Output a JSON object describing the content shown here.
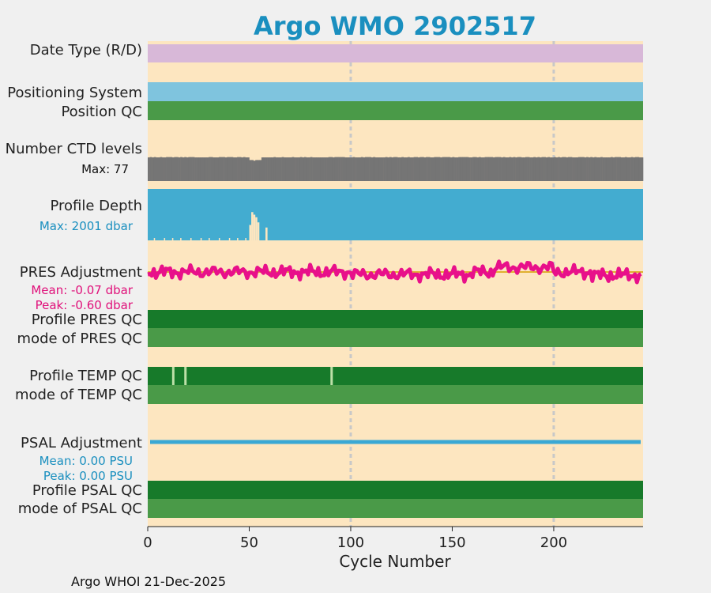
{
  "title": "Argo WMO 2902517",
  "footer": "Argo WHOI 21-Dec-2025",
  "colors": {
    "background": "#f0f0f0",
    "plot_bg": "#fde6c0",
    "title": "#1a8fbf",
    "date_type": "#d8b8d8",
    "positioning": "#7fc4de",
    "qc_good": "#4a9a48",
    "qc_dark": "#177a2a",
    "ctd_levels": "#757575",
    "profile_depth": "#43acd0",
    "pres_adjust": "#e8108a",
    "pres_mean_line": "#e0b030",
    "psal_adjust": "#3aa8d4",
    "grid": "#c8c8c8",
    "blue_text": "#1a8fbf",
    "pink_text": "#e0107a"
  },
  "chart_data": {
    "type": "bar",
    "title": "Argo WMO 2902517",
    "xlabel": "Cycle Number",
    "xlim": [
      0,
      244
    ],
    "xticks": [
      "0",
      "50",
      "100",
      "150",
      "200"
    ],
    "xtick_values": [
      0,
      50,
      100,
      150,
      200
    ],
    "grid_x": [
      100,
      200
    ],
    "rows": {
      "date_type": {
        "label": "Date Type (R/D)"
      },
      "positioning": {
        "label": "Positioning System"
      },
      "position_qc": {
        "label": "Position QC"
      },
      "ctd_levels": {
        "label": "Number CTD levels",
        "max_text": "Max: 77",
        "max": 77,
        "typical": 72,
        "dip_cycles": [
          50,
          51,
          52,
          53,
          54,
          55
        ],
        "dip_value": 64
      },
      "profile_depth": {
        "label": "Profile Depth",
        "max_text": "Max: 2001 dbar",
        "max": 2001,
        "shallow_cycles": [
          {
            "cycle": 51,
            "frac": 0.55
          },
          {
            "cycle": 52,
            "frac": 0.5
          },
          {
            "cycle": 53,
            "frac": 0.45
          },
          {
            "cycle": 50,
            "frac": 0.3
          },
          {
            "cycle": 54,
            "frac": 0.35
          },
          {
            "cycle": 58,
            "frac": 0.25
          }
        ]
      },
      "pres_adjustment": {
        "label": "PRES Adjustment",
        "mean_text": "Mean: -0.07 dbar",
        "peak_text": "Peak: -0.60 dbar",
        "mean": -0.07,
        "peak": -0.6
      },
      "profile_pres_qc": {
        "label": "Profile PRES QC"
      },
      "mode_pres_qc": {
        "label": "mode of PRES QC"
      },
      "profile_temp_qc": {
        "label": "Profile TEMP QC",
        "flag_cycles": [
          12,
          18,
          90
        ]
      },
      "mode_temp_qc": {
        "label": "mode of TEMP QC"
      },
      "psal_adjustment": {
        "label": "PSAL Adjustment",
        "mean_text": "Mean: 0.00 PSU",
        "peak_text": "Peak: 0.00 PSU",
        "mean": 0.0,
        "peak": 0.0
      },
      "profile_psal_qc": {
        "label": "Profile PSAL QC"
      },
      "mode_psal_qc": {
        "label": "mode of PSAL QC"
      }
    }
  }
}
